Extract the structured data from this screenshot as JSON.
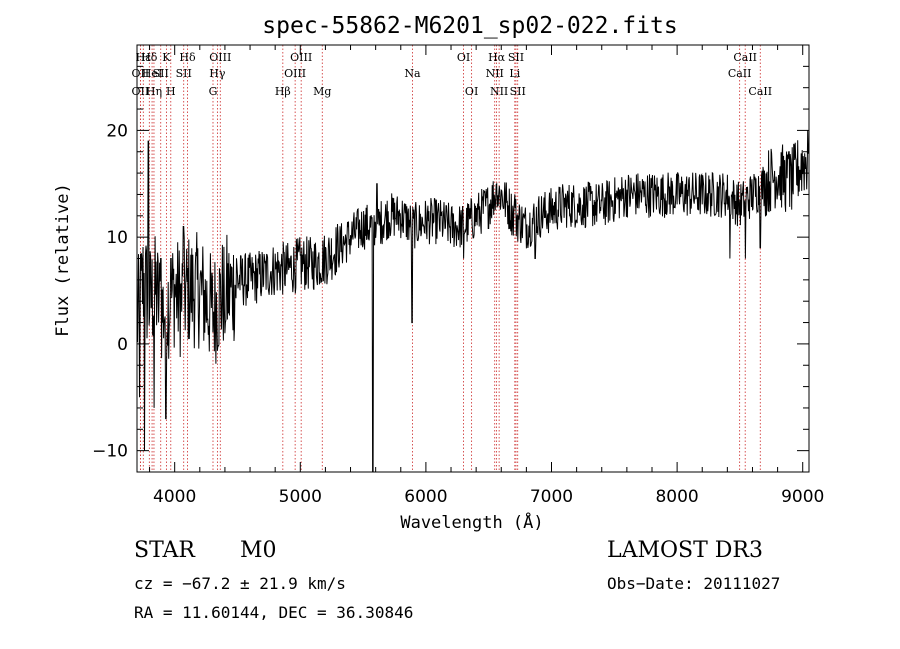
{
  "chart_data": {
    "type": "line",
    "title": "spec-55862-M6201_sp02-022.fits",
    "xlabel": "Wavelength (Å)",
    "ylabel": "Flux (relative)",
    "xlim": [
      3700,
      9050
    ],
    "ylim": [
      -12,
      28
    ],
    "xticks": [
      4000,
      5000,
      6000,
      7000,
      8000,
      9000
    ],
    "yticks": [
      -10,
      0,
      10,
      20
    ],
    "grid": false,
    "series": [
      {
        "name": "flux",
        "anchors": [
          [
            3700,
            2
          ],
          [
            3750,
            6
          ],
          [
            3800,
            4
          ],
          [
            3850,
            5
          ],
          [
            3900,
            3
          ],
          [
            3950,
            4
          ],
          [
            4000,
            5
          ],
          [
            4050,
            4
          ],
          [
            4100,
            5
          ],
          [
            4150,
            5
          ],
          [
            4200,
            5
          ],
          [
            4250,
            4
          ],
          [
            4300,
            3
          ],
          [
            4350,
            4
          ],
          [
            4400,
            5
          ],
          [
            4450,
            5
          ],
          [
            4500,
            6
          ],
          [
            4600,
            6
          ],
          [
            4700,
            6.5
          ],
          [
            4800,
            7
          ],
          [
            4900,
            7
          ],
          [
            5000,
            7.5
          ],
          [
            5100,
            7.5
          ],
          [
            5200,
            8
          ],
          [
            5300,
            9
          ],
          [
            5400,
            10
          ],
          [
            5500,
            11
          ],
          [
            5600,
            11
          ],
          [
            5700,
            12
          ],
          [
            5800,
            12
          ],
          [
            5900,
            11
          ],
          [
            6000,
            11.5
          ],
          [
            6100,
            11.5
          ],
          [
            6200,
            11
          ],
          [
            6300,
            11
          ],
          [
            6400,
            12
          ],
          [
            6500,
            13
          ],
          [
            6550,
            14
          ],
          [
            6600,
            14
          ],
          [
            6700,
            12
          ],
          [
            6800,
            11
          ],
          [
            6900,
            12
          ],
          [
            7000,
            12.5
          ],
          [
            7100,
            13
          ],
          [
            7200,
            13
          ],
          [
            7400,
            13
          ],
          [
            7600,
            14
          ],
          [
            7800,
            14
          ],
          [
            8000,
            14
          ],
          [
            8200,
            14
          ],
          [
            8400,
            14
          ],
          [
            8500,
            13
          ],
          [
            8600,
            14
          ],
          [
            8700,
            15
          ],
          [
            8800,
            16
          ],
          [
            8900,
            15
          ],
          [
            9000,
            17
          ]
        ],
        "features": [
          [
            3720,
            -5
          ],
          [
            3760,
            -10
          ],
          [
            3790,
            19
          ],
          [
            3835,
            -6
          ],
          [
            3890,
            8
          ],
          [
            3930,
            -7
          ],
          [
            3970,
            8
          ],
          [
            4070,
            11
          ],
          [
            4400,
            1
          ],
          [
            5578,
            -14
          ],
          [
            5610,
            15
          ],
          [
            5890,
            2
          ],
          [
            6300,
            8
          ],
          [
            6565,
            15
          ],
          [
            6708,
            14
          ],
          [
            6870,
            8
          ],
          [
            8420,
            8
          ],
          [
            8545,
            8
          ],
          [
            8662,
            9
          ],
          [
            8890,
            18
          ],
          [
            9040,
            20
          ]
        ]
      }
    ],
    "lines": [
      {
        "name": "Hε",
        "wl": 3750,
        "row": 1
      },
      {
        "name": "OII",
        "wl": 3727,
        "row": 2
      },
      {
        "name": "OII",
        "wl": 3727,
        "row": 3
      },
      {
        "name": "Hδ",
        "wl": 3798,
        "row": 1
      },
      {
        "name": "HeI",
        "wl": 3820,
        "row": 2
      },
      {
        "name": "Hη",
        "wl": 3835,
        "row": 3
      },
      {
        "name": "K",
        "wl": 3934,
        "row": 1
      },
      {
        "name": "SII",
        "wl": 3889,
        "row": 2
      },
      {
        "name": "H",
        "wl": 3969,
        "row": 3
      },
      {
        "name": "Hδ",
        "wl": 4102,
        "row": 1
      },
      {
        "name": "SII",
        "wl": 4072,
        "row": 2
      },
      {
        "name": "OIII",
        "wl": 4363,
        "row": 1
      },
      {
        "name": "Hγ",
        "wl": 4340,
        "row": 2
      },
      {
        "name": "G",
        "wl": 4305,
        "row": 3
      },
      {
        "name": "Hβ",
        "wl": 4861,
        "row": 3
      },
      {
        "name": "OIII",
        "wl": 5007,
        "row": 1
      },
      {
        "name": "OIII",
        "wl": 4959,
        "row": 2
      },
      {
        "name": "Mg",
        "wl": 5175,
        "row": 3
      },
      {
        "name": "Na",
        "wl": 5893,
        "row": 2
      },
      {
        "name": "OI",
        "wl": 6300,
        "row": 1
      },
      {
        "name": "OI",
        "wl": 6364,
        "row": 3
      },
      {
        "name": "Hα",
        "wl": 6563,
        "row": 1
      },
      {
        "name": "NII",
        "wl": 6548,
        "row": 2
      },
      {
        "name": "NII",
        "wl": 6583,
        "row": 3
      },
      {
        "name": "SII",
        "wl": 6717,
        "row": 1
      },
      {
        "name": "Li",
        "wl": 6708,
        "row": 2
      },
      {
        "name": "SII",
        "wl": 6731,
        "row": 3
      },
      {
        "name": "CaII",
        "wl": 8498,
        "row": 2
      },
      {
        "name": "CaII",
        "wl": 8542,
        "row": 1
      },
      {
        "name": "CaII",
        "wl": 8662,
        "row": 3
      }
    ]
  },
  "info": {
    "class": "STAR",
    "subclass": "M0",
    "survey": "LAMOST DR3",
    "cz": "cz = −67.2 ± 21.9 km/s",
    "obs_date": "Obs−Date: 20111027",
    "coords": "RA =  11.60144, DEC =  36.30846"
  }
}
